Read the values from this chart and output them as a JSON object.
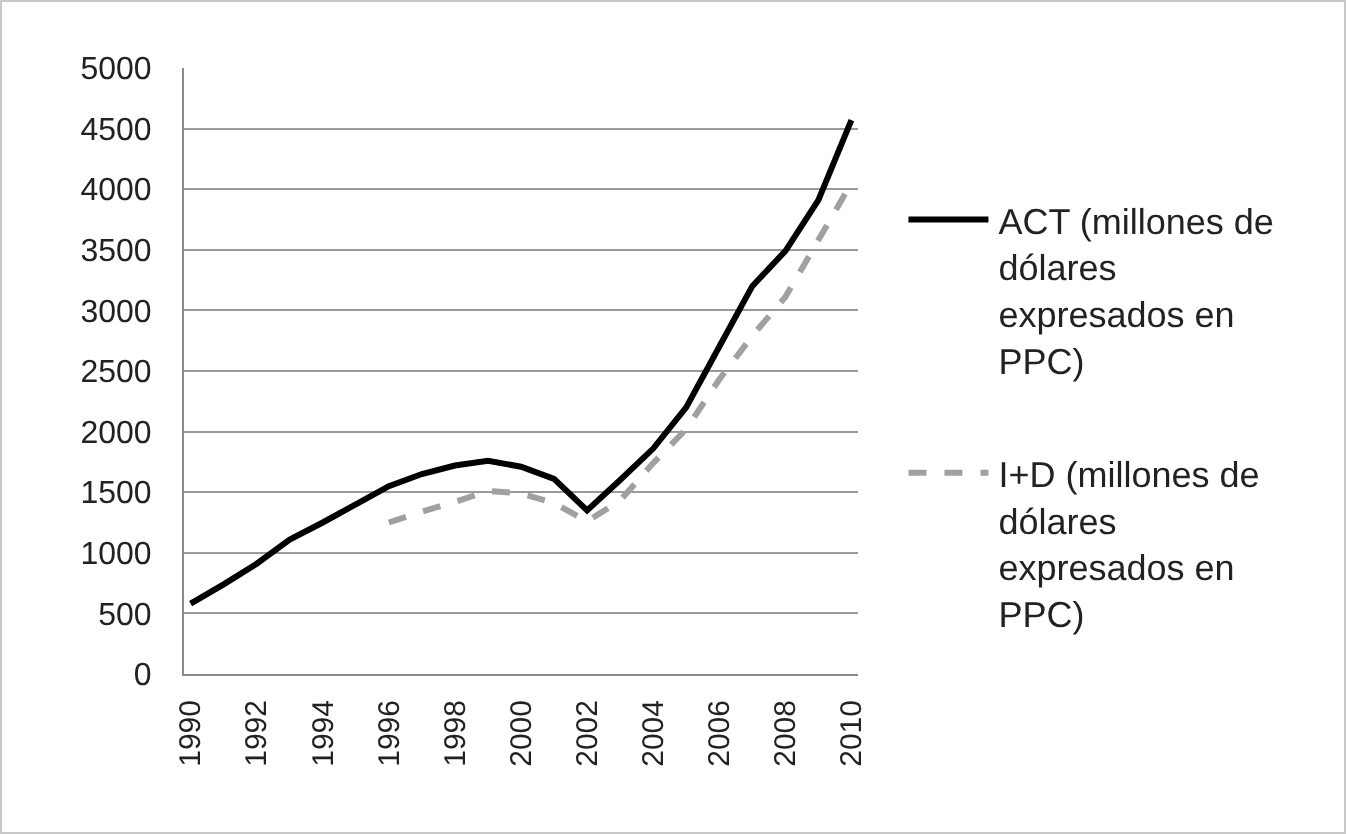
{
  "chart_data": {
    "type": "line",
    "categories": [
      "1990",
      null,
      "1992",
      null,
      "1994",
      null,
      "1996",
      null,
      "1998",
      null,
      "2000",
      null,
      "2002",
      null,
      "2004",
      null,
      "2006",
      null,
      "2008",
      null,
      "2010"
    ],
    "series": [
      {
        "name": "ACT (millones de dólares expresados en PPC)",
        "color": "#000000",
        "line_style": "solid",
        "values": [
          580,
          740,
          910,
          1110,
          1250,
          1400,
          1550,
          1650,
          1720,
          1760,
          1710,
          1610,
          1350,
          1600,
          1860,
          2200,
          2700,
          3200,
          3490,
          3910,
          4570
        ]
      },
      {
        "name": "I+D (millones de dólares expresados en PPC)",
        "color": "#a0a0a0",
        "line_style": "dashed",
        "values": [
          null,
          null,
          null,
          null,
          null,
          null,
          1250,
          1340,
          1420,
          1510,
          1490,
          1410,
          1260,
          1430,
          1740,
          2020,
          2430,
          2790,
          3110,
          3580,
          4050
        ]
      }
    ],
    "ylim": [
      0,
      5000
    ],
    "yticks": [
      0,
      500,
      1000,
      1500,
      2000,
      2500,
      3000,
      3500,
      4000,
      4500,
      5000
    ],
    "grid": "y",
    "legend": "right",
    "marker": "none"
  }
}
